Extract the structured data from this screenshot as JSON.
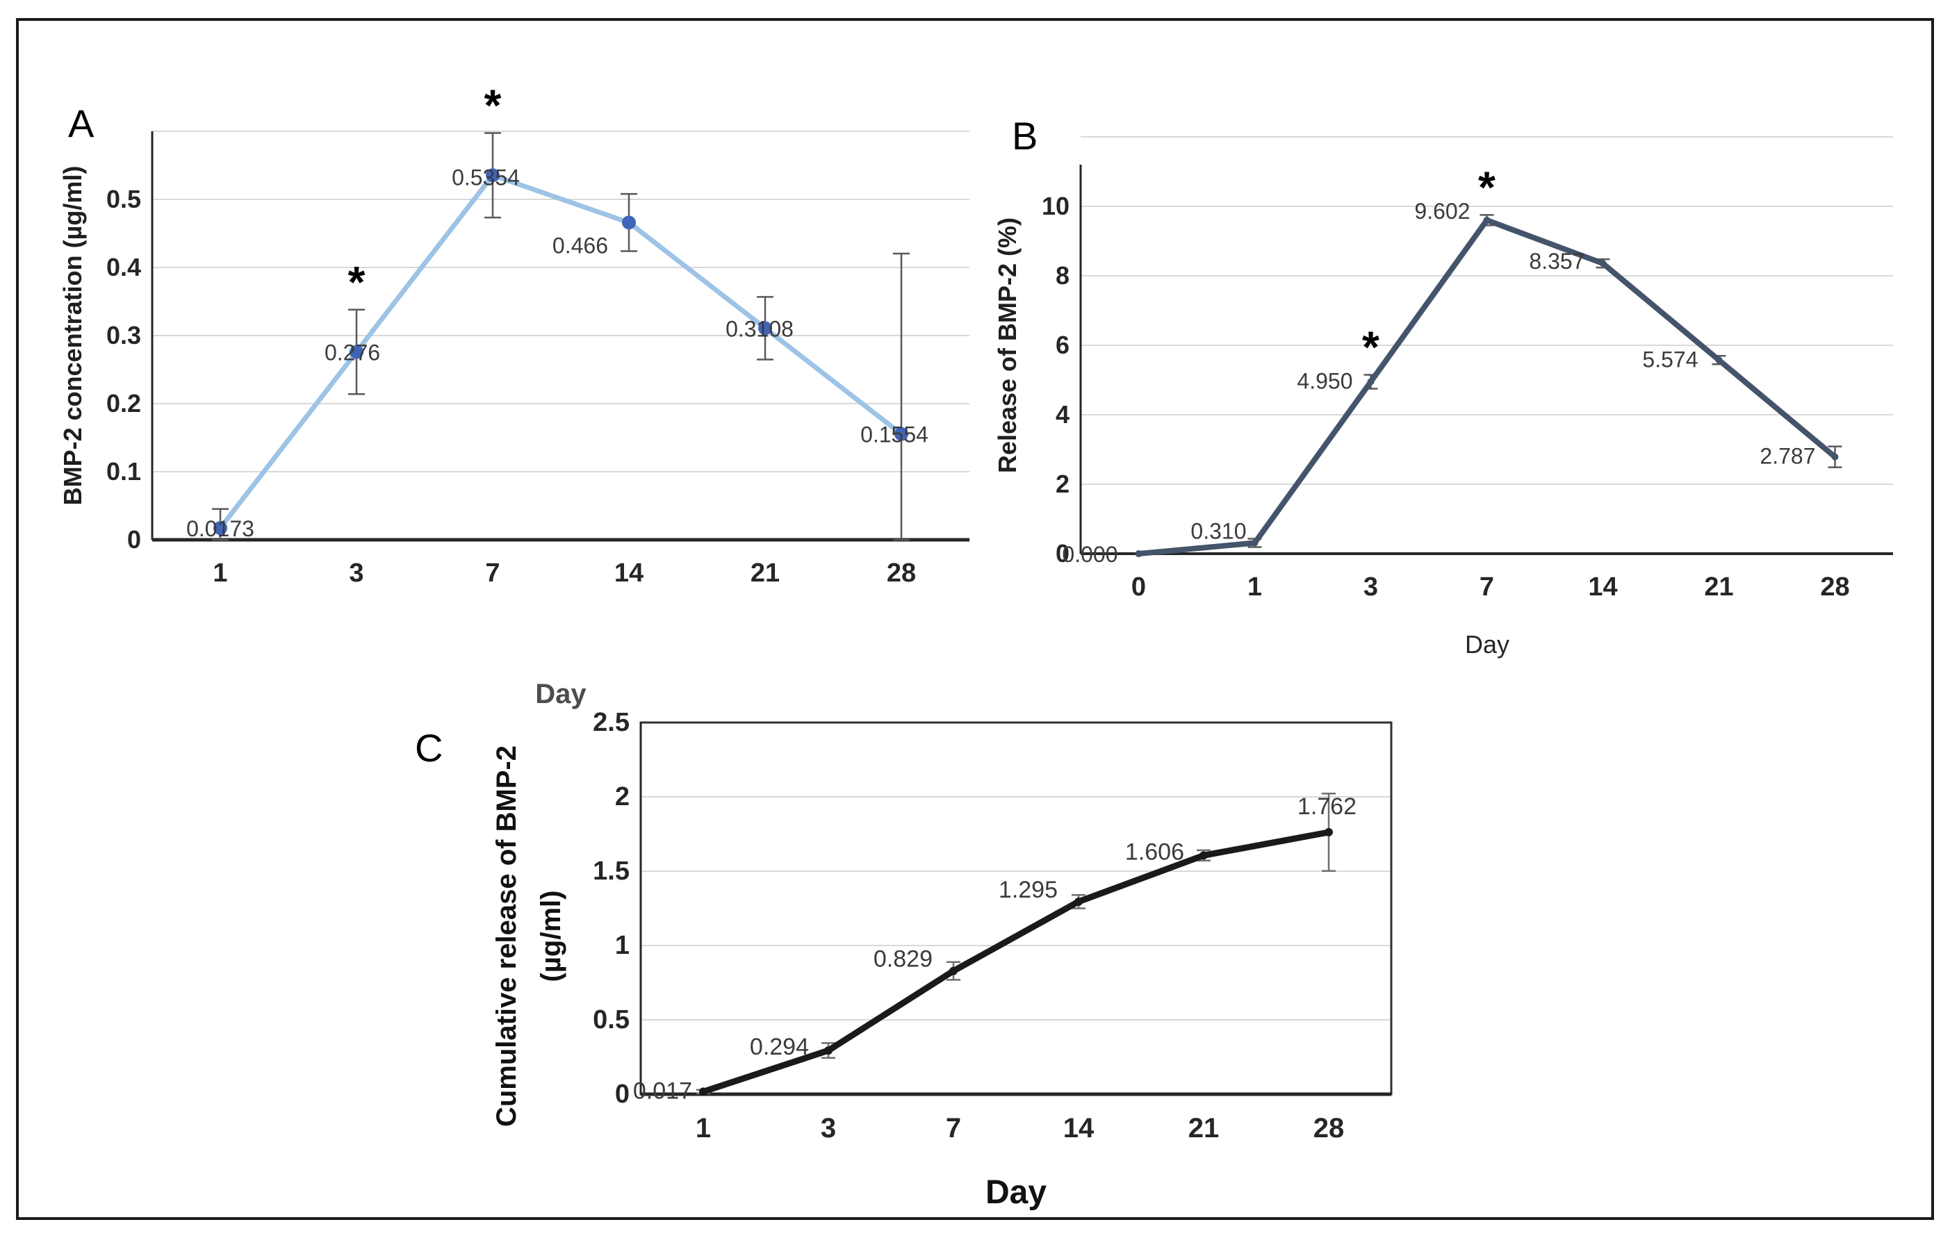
{
  "figure": {
    "background": "#ffffff",
    "border_color": "#1a1a1a",
    "gridline_color": "#d9d9d9",
    "panels": [
      {
        "letter": "A",
        "x_title": "Day",
        "y_title": "BMP-2 concentration (µg/ml)"
      },
      {
        "letter": "B",
        "x_title": "Day",
        "y_title": "Release of  BMP-2 (%)"
      },
      {
        "letter": "C",
        "x_title": "Day",
        "y_title_line1": "Cumulative release of BMP-2",
        "y_title_line2": "(µg/ml)"
      }
    ],
    "significance_symbol": "*"
  },
  "chart_data": [
    {
      "panel": "A",
      "type": "line",
      "title": "",
      "xlabel": "Day",
      "ylabel": "BMP-2 concentration (µg/ml)",
      "categories": [
        "1",
        "3",
        "7",
        "14",
        "21",
        "28"
      ],
      "values": [
        0.0173,
        0.276,
        0.5354,
        0.466,
        0.3108,
        0.1554
      ],
      "data_labels": [
        "0.0173",
        "0.276",
        "0.5354",
        "0.466",
        "0.3108",
        "0.1554"
      ],
      "errors_plus": [
        0.028,
        0.062,
        0.062,
        0.042,
        0.046,
        0.265
      ],
      "errors_minus": [
        0.028,
        0.062,
        0.062,
        0.042,
        0.046,
        0.1554
      ],
      "significant_at": [
        "3",
        "7"
      ],
      "ylim": [
        0,
        0.6
      ],
      "ytick_step": 0.1,
      "ytick_labels": [
        "0",
        "0.1",
        "0.2",
        "0.3",
        "0.4",
        "0.5"
      ],
      "grid": true,
      "legend": "none",
      "line_color": "#9dc3e6",
      "marker_color": "#4065b8",
      "error_color": "#595959"
    },
    {
      "panel": "B",
      "type": "line",
      "title": "",
      "xlabel": "Day",
      "ylabel": "Release of  BMP-2 (%)",
      "categories": [
        "0",
        "1",
        "3",
        "7",
        "14",
        "21",
        "28"
      ],
      "values": [
        0.0,
        0.31,
        4.95,
        9.602,
        8.357,
        5.574,
        2.787
      ],
      "data_labels": [
        "0.000",
        "0.310",
        "4.950",
        "9.602",
        "8.357",
        "5.574",
        "2.787"
      ],
      "errors_plus": [
        0,
        0.12,
        0.2,
        0.15,
        0.12,
        0.12,
        0.3
      ],
      "errors_minus": [
        0,
        0.12,
        0.2,
        0.15,
        0.12,
        0.12,
        0.3
      ],
      "significant_at": [
        "3",
        "7"
      ],
      "ylim": [
        0,
        12
      ],
      "ytick_step": 2,
      "ytick_labels": [
        "0",
        "2",
        "4",
        "6",
        "8",
        "10"
      ],
      "grid": true,
      "legend": "none",
      "line_color": "#44546a",
      "marker_color": "#44546a",
      "error_color": "#595959"
    },
    {
      "panel": "C",
      "type": "line",
      "title": "",
      "xlabel": "Day",
      "ylabel": "Cumulative release of BMP-2 (µg/ml)",
      "categories": [
        "1",
        "3",
        "7",
        "14",
        "21",
        "28"
      ],
      "values": [
        0.017,
        0.294,
        0.829,
        1.295,
        1.606,
        1.762
      ],
      "data_labels": [
        "0.017",
        "0.294",
        "0.829",
        "1.295",
        "1.606",
        "1.762"
      ],
      "errors_plus": [
        0.012,
        0.05,
        0.06,
        0.045,
        0.035,
        0.26
      ],
      "errors_minus": [
        0.012,
        0.05,
        0.06,
        0.045,
        0.035,
        0.26
      ],
      "significant_at": [],
      "ylim": [
        0,
        2.5
      ],
      "ytick_step": 0.5,
      "ytick_labels": [
        "0",
        "0.5",
        "1",
        "1.5",
        "2",
        "2.5"
      ],
      "grid": true,
      "legend": "none",
      "line_color": "#1a1a1a",
      "marker_color": "#1a1a1a",
      "error_color": "#6e6e6e"
    }
  ]
}
